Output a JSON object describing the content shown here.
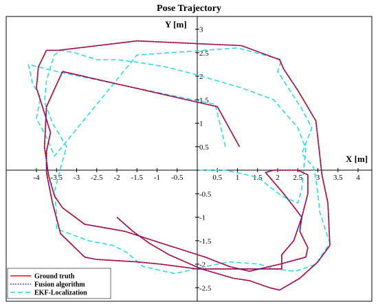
{
  "chart_data": {
    "type": "line",
    "title": "Pose Trajectory",
    "xlabel": "X [m]",
    "ylabel": "Y [m]",
    "xlim": [
      -4.7,
      4.6
    ],
    "ylim": [
      -2.75,
      3.3
    ],
    "x_ticks": [
      "-4",
      "-3.5",
      "-3",
      "-2.5",
      "-2",
      "-1.5",
      "-1",
      "-0.5",
      "0.5",
      "1",
      "1.5",
      "2",
      "2.5",
      "3",
      "3.5",
      "4"
    ],
    "y_ticks": [
      "-2.5",
      "-2",
      "-1.5",
      "-1",
      "-0.5",
      "0.5",
      "1",
      "1.5",
      "2",
      "2.5",
      "3"
    ],
    "legend_position": "bottom-left",
    "series": [
      {
        "name": "Ground truth",
        "color": "#ff0000",
        "style": "solid",
        "x": [
          1.05,
          0.5,
          -3.35,
          -3.75,
          -3.8,
          -3.7,
          -3.55,
          -3.35,
          -2.8,
          -1.8,
          -0.9,
          0.2,
          0.8,
          1.3,
          2.05,
          2.7,
          2.75,
          2.55,
          2.6,
          2.15,
          1.7,
          1.9,
          2.5,
          2.75,
          2.75,
          2.6,
          2.4,
          2.1,
          2.1,
          1.0,
          0.0,
          -0.9,
          -1.5,
          -2.5,
          -2.8,
          -3.4,
          -3.6,
          -3.75,
          -3.75,
          -3.65,
          -3.85,
          -4.0,
          -3.95,
          -3.75,
          -3.45,
          -1.5,
          1.1,
          2.05,
          2.15,
          2.5,
          2.95,
          3.05,
          3.1,
          3.25,
          3.3,
          3.0,
          2.55,
          2.05,
          1.8,
          1.3,
          0.9,
          0.1,
          -0.7,
          -1.2,
          -1.6,
          -2.0
        ],
        "y": [
          0.5,
          1.35,
          2.1,
          1.35,
          0.5,
          -0.1,
          -0.55,
          -0.8,
          -1.15,
          -1.3,
          -1.55,
          -1.85,
          -2.05,
          -2.15,
          -2.0,
          -1.85,
          -1.65,
          -1.3,
          -1.0,
          -0.5,
          -0.05,
          0.0,
          0.0,
          -0.1,
          -0.5,
          -1.0,
          -1.5,
          -1.8,
          -2.1,
          -2.1,
          -2.1,
          -2.0,
          -1.95,
          -1.9,
          -1.85,
          -1.35,
          -0.7,
          -0.05,
          0.4,
          0.8,
          1.35,
          1.75,
          2.2,
          2.55,
          2.55,
          2.75,
          2.65,
          2.35,
          2.15,
          1.7,
          1.05,
          0.3,
          -0.1,
          -0.7,
          -1.6,
          -1.95,
          -2.3,
          -2.55,
          -2.5,
          -2.35,
          -2.3,
          -2.1,
          -1.8,
          -1.55,
          -1.3,
          -1.0
        ]
      },
      {
        "name": "Fusion algorithm",
        "color": "#1a1acc",
        "style": "dotted",
        "x": [
          1.05,
          0.5,
          -3.35,
          -3.75,
          -3.8,
          -3.7,
          -3.55,
          -3.35,
          -2.8,
          -1.8,
          -0.9,
          0.2,
          0.8,
          1.3,
          2.05,
          2.7,
          2.75,
          2.55,
          2.6,
          2.15,
          1.7,
          1.9,
          2.5,
          2.75,
          2.75,
          2.6,
          2.4,
          2.1,
          2.1,
          1.0,
          0.0,
          -0.9,
          -1.5,
          -2.5,
          -2.8,
          -3.4,
          -3.6,
          -3.75,
          -3.75,
          -3.65,
          -3.85,
          -4.0,
          -3.95,
          -3.75,
          -3.45,
          -1.5,
          1.1,
          2.05,
          2.15,
          2.5,
          2.95,
          3.05,
          3.1,
          3.25,
          3.3,
          3.0,
          2.55,
          2.05,
          1.8,
          1.3,
          0.9,
          0.1,
          -0.7,
          -1.2,
          -1.6,
          -2.0
        ],
        "y": [
          0.5,
          1.35,
          2.1,
          1.35,
          0.5,
          -0.1,
          -0.55,
          -0.8,
          -1.15,
          -1.3,
          -1.55,
          -1.85,
          -2.05,
          -2.15,
          -2.0,
          -1.85,
          -1.65,
          -1.3,
          -1.0,
          -0.5,
          -0.05,
          0.0,
          0.0,
          -0.1,
          -0.5,
          -1.0,
          -1.5,
          -1.8,
          -2.1,
          -2.1,
          -2.1,
          -2.0,
          -1.95,
          -1.9,
          -1.85,
          -1.35,
          -0.7,
          -0.05,
          0.4,
          0.8,
          1.35,
          1.75,
          2.2,
          2.55,
          2.55,
          2.75,
          2.65,
          2.35,
          2.15,
          1.7,
          1.05,
          0.3,
          -0.1,
          -0.7,
          -1.6,
          -1.95,
          -2.3,
          -2.55,
          -2.5,
          -2.35,
          -2.3,
          -2.1,
          -1.8,
          -1.55,
          -1.3,
          -1.0
        ]
      },
      {
        "name": "EKF-Localization",
        "color": "#22d8e8",
        "style": "dashed",
        "x": [
          0.7,
          0.45,
          -3.5,
          -4.2,
          -4.1,
          -3.9,
          -4.0,
          -3.75,
          -3.55,
          -1.5,
          1.0,
          2.1,
          2.0,
          2.6,
          2.85,
          2.6,
          2.9,
          2.95,
          3.0,
          3.05,
          3.2,
          3.3,
          2.95,
          2.45,
          1.9,
          1.55,
          0.8,
          0.2,
          -0.55,
          -1.35,
          -1.75,
          -2.1,
          -2.7,
          -3.5,
          -3.5,
          -3.55,
          -3.4,
          -3.25,
          -3.6,
          -3.8,
          -3.75,
          -3.65,
          -3.55,
          -3.4,
          -3.05,
          -2.5,
          -2.0,
          -1.5,
          -0.8,
          -0.1,
          0.5,
          1.1,
          1.9,
          2.5,
          2.7,
          2.65,
          2.6,
          2.5,
          2.1,
          1.8,
          1.5,
          0.7,
          0.05
        ],
        "y": [
          0.5,
          1.4,
          2.1,
          2.25,
          1.85,
          1.55,
          1.1,
          0.7,
          0.3,
          2.45,
          2.6,
          2.35,
          2.1,
          1.3,
          0.9,
          0.35,
          0.05,
          -0.2,
          -0.5,
          -0.9,
          -1.3,
          -1.55,
          -2.0,
          -2.15,
          -2.1,
          -2.0,
          -1.95,
          -2.05,
          -2.2,
          -2.05,
          -1.75,
          -1.6,
          -1.5,
          -1.25,
          -0.95,
          -0.45,
          0.05,
          0.5,
          1.0,
          1.45,
          1.9,
          2.2,
          2.45,
          2.55,
          2.5,
          2.35,
          2.35,
          2.3,
          2.2,
          2.05,
          1.9,
          1.75,
          1.5,
          0.9,
          0.45,
          0.05,
          -0.4,
          -0.7,
          -0.55,
          -0.35,
          -0.15,
          0.0,
          0.0
        ]
      }
    ]
  }
}
